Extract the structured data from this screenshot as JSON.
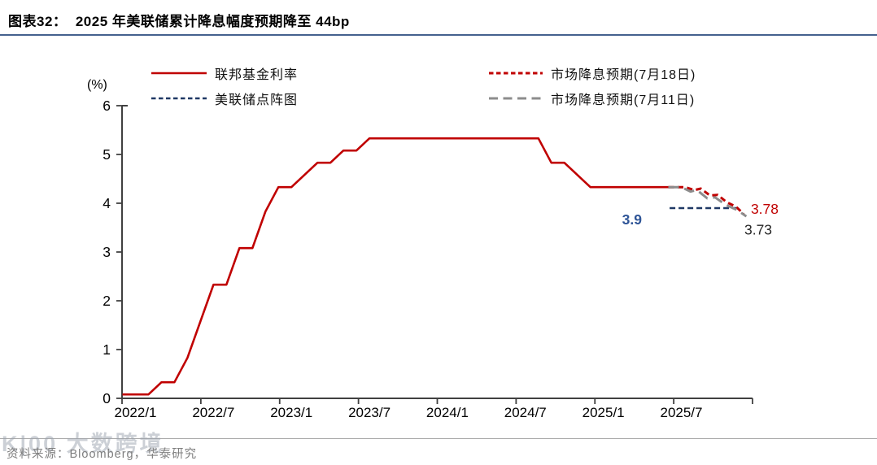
{
  "title": "图表32：  2025 年美联储累计降息幅度预期降至 44bp",
  "source_note": "资料来源：Bloomberg，华泰研究",
  "watermark": "K|00 大数跨境",
  "chart_data": {
    "type": "line",
    "figure_label": "图表32",
    "title": "2025 年美联储累计降息幅度预期降至 44bp",
    "unit_label": "(%)",
    "ylim": [
      0,
      6
    ],
    "yticks": [
      0,
      1,
      2,
      3,
      4,
      5,
      6
    ],
    "xtick_labels": [
      "2022/1",
      "2022/7",
      "2023/1",
      "2023/7",
      "2024/1",
      "2024/7",
      "2025/1",
      "2025/7"
    ],
    "xtick_months": [
      0,
      6,
      12,
      18,
      24,
      30,
      36,
      42
    ],
    "grid": false,
    "legend_position": "top",
    "axis_color": "#404040",
    "series": [
      {
        "name": "联邦基金利率",
        "color": "#C00000",
        "dash": "solid",
        "width": 2.6,
        "points": [
          [
            -1,
            0.08
          ],
          [
            0,
            0.08
          ],
          [
            1,
            0.08
          ],
          [
            2,
            0.33
          ],
          [
            3,
            0.33
          ],
          [
            4,
            0.83
          ],
          [
            5,
            1.58
          ],
          [
            6,
            2.33
          ],
          [
            7,
            2.33
          ],
          [
            8,
            3.08
          ],
          [
            9,
            3.08
          ],
          [
            10,
            3.83
          ],
          [
            11,
            4.33
          ],
          [
            12,
            4.33
          ],
          [
            13,
            4.58
          ],
          [
            14,
            4.83
          ],
          [
            15,
            4.83
          ],
          [
            16,
            5.08
          ],
          [
            17,
            5.08
          ],
          [
            18,
            5.33
          ],
          [
            31,
            5.33
          ],
          [
            32,
            4.83
          ],
          [
            33,
            4.83
          ],
          [
            34,
            4.58
          ],
          [
            35,
            4.33
          ],
          [
            41,
            4.33
          ]
        ]
      },
      {
        "name": "美联储点阵图",
        "color": "#1F3864",
        "dash": "7 4",
        "width": 2.6,
        "points": [
          [
            41.1,
            3.9
          ],
          [
            46.6,
            3.9
          ]
        ]
      },
      {
        "name": "市场降息预期(7月18日)",
        "color": "#C00000",
        "dash": "7 4.5",
        "width": 3,
        "points": [
          [
            41,
            4.33
          ],
          [
            42.3,
            4.33
          ],
          [
            43,
            4.27
          ],
          [
            43.5,
            4.3
          ],
          [
            44.2,
            4.16
          ],
          [
            44.8,
            4.17
          ],
          [
            45.5,
            4.02
          ],
          [
            46.2,
            3.93
          ],
          [
            46.8,
            3.78
          ]
        ]
      },
      {
        "name": "市场降息预期(7月11日)",
        "color": "#8C8C8C",
        "dash": "13 7",
        "width": 3,
        "points": [
          [
            41,
            4.33
          ],
          [
            42,
            4.33
          ],
          [
            42.7,
            4.24
          ],
          [
            43.2,
            4.27
          ],
          [
            44,
            4.1
          ],
          [
            44.6,
            4.12
          ],
          [
            45.4,
            3.97
          ],
          [
            46.3,
            3.86
          ],
          [
            47,
            3.73
          ]
        ]
      }
    ],
    "annotations": [
      {
        "text": "3.9",
        "m": 38.2,
        "v": 3.67,
        "color": "#2F5597",
        "bold": true,
        "anchor": "middle"
      },
      {
        "text": "3.78",
        "m": 47.35,
        "v": 3.88,
        "color": "#C00000",
        "bold": false,
        "anchor": "start"
      },
      {
        "text": "3.73",
        "m": 46.85,
        "v": 3.46,
        "color": "#262626",
        "bold": false,
        "anchor": "start"
      }
    ]
  }
}
